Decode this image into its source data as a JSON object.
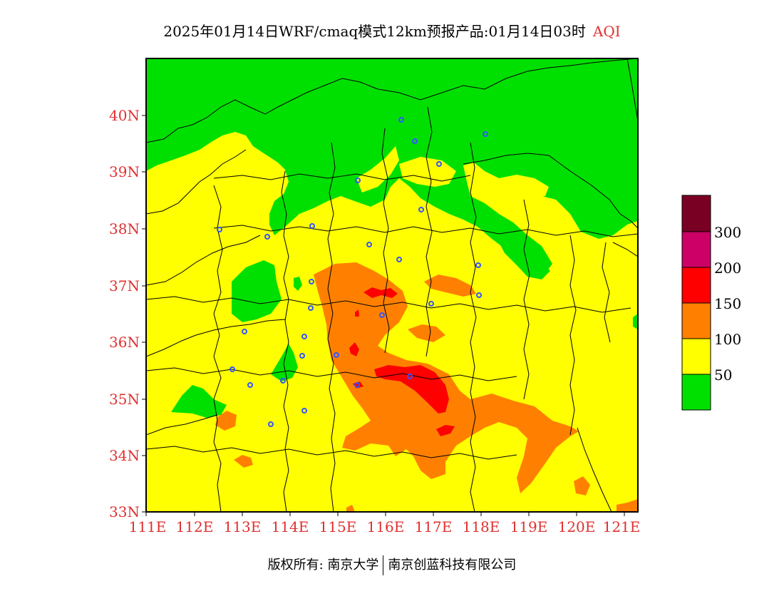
{
  "title": {
    "main": "2025年01月14日WRF/cmaq模式12km预报产品:01月14日03时",
    "product": "AQI"
  },
  "map": {
    "lat_ticks": [
      "40N",
      "39N",
      "38N",
      "37N",
      "36N",
      "35N",
      "34N",
      "33N"
    ],
    "lon_ticks": [
      "111E",
      "112E",
      "113E",
      "114E",
      "115E",
      "116E",
      "117E",
      "118E",
      "119E",
      "120E",
      "121E"
    ],
    "colors": {
      "good": "#00e000",
      "moderate": "#ffff00",
      "usg": "#ff8000",
      "unhealthy": "#ff0000",
      "very_unhealthy": "#cc0066",
      "hazardous": "#7a0023",
      "city_marker": "#3355ff"
    }
  },
  "legend": {
    "labels": [
      "300",
      "200",
      "150",
      "100",
      "50"
    ],
    "colors": [
      "#7a0023",
      "#cc0066",
      "#ff0000",
      "#ff8000",
      "#ffff00",
      "#00e000"
    ]
  },
  "footer": {
    "copyright": "版权所有: 南京大学",
    "company": "南京创蓝科技有限公司"
  }
}
